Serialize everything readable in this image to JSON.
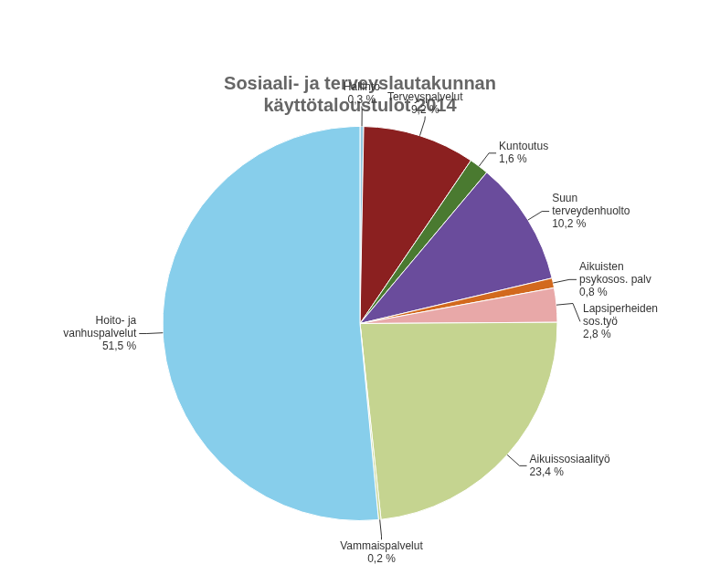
{
  "chart_data": {
    "type": "pie",
    "title": "Sosiaali- ja terveyslautakunnan\nkäyttötaloustulot 2014",
    "categories": [
      "Hallinto",
      "Terveyspalvelut",
      "Kuntoutus",
      "Suun\nterveydenhuolto",
      "Aikuisten\npsykosos. palv",
      "Lapsiperheiden\nsos.työ",
      "Aikuissosiaalityö",
      "Vammaispalvelut",
      "Hoito- ja\nvanhuspalvelut"
    ],
    "values": [
      0.3,
      9.2,
      1.6,
      10.2,
      0.8,
      2.8,
      23.4,
      0.2,
      51.5
    ],
    "value_labels": [
      "0,3 %",
      "9,2 %",
      "1,6 %",
      "10,2 %",
      "0,8 %",
      "2,8 %",
      "23,4 %",
      "0,2 %",
      "51,5 %"
    ],
    "colors": [
      "#92c5de",
      "#8b2020",
      "#4a7a30",
      "#6a4c9c",
      "#d2691e",
      "#e8a8a8",
      "#c5d490",
      "#c5d490",
      "#87ceeb"
    ],
    "data_labels": true
  }
}
